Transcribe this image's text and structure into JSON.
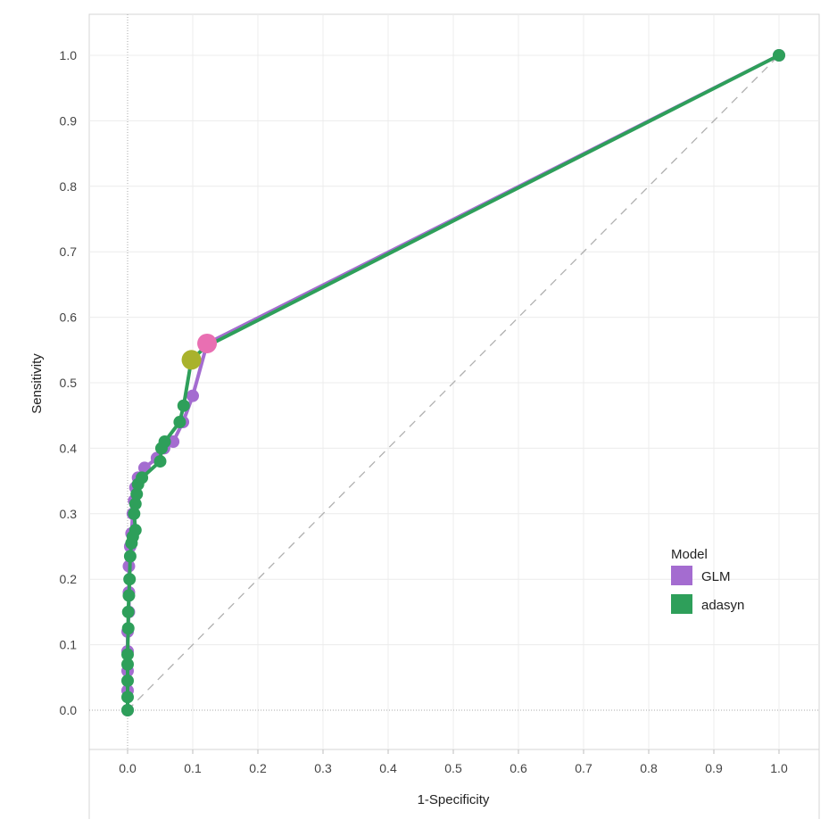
{
  "chart_data": {
    "type": "line",
    "xlabel": "1-Specificity",
    "ylabel": "Sensitivity",
    "xlim": [
      0,
      1
    ],
    "ylim": [
      0,
      1
    ],
    "x_ticks": [
      "0.0",
      "0.1",
      "0.2",
      "0.3",
      "0.4",
      "0.5",
      "0.6",
      "0.7",
      "0.8",
      "0.9",
      "1.0"
    ],
    "y_ticks": [
      "0.0",
      "0.1",
      "0.2",
      "0.3",
      "0.4",
      "0.5",
      "0.6",
      "0.7",
      "0.8",
      "0.9",
      "1.0"
    ],
    "grid": true,
    "reference_line": {
      "from": [
        0,
        0
      ],
      "to": [
        1,
        1
      ],
      "style": "dashed",
      "color": "#b0b0b0"
    },
    "legend": {
      "title": "Model",
      "placement": "right"
    },
    "series": [
      {
        "name": "GLM",
        "color": "#a46cd0",
        "points": [
          [
            0,
            0
          ],
          [
            0,
            0.03
          ],
          [
            0,
            0.06
          ],
          [
            0,
            0.09
          ],
          [
            0,
            0.12
          ],
          [
            0.002,
            0.15
          ],
          [
            0.002,
            0.18
          ],
          [
            0.002,
            0.22
          ],
          [
            0.004,
            0.25
          ],
          [
            0.006,
            0.27
          ],
          [
            0.008,
            0.3
          ],
          [
            0.01,
            0.32
          ],
          [
            0.012,
            0.34
          ],
          [
            0.016,
            0.355
          ],
          [
            0.026,
            0.37
          ],
          [
            0.045,
            0.385
          ],
          [
            0.056,
            0.4
          ],
          [
            0.07,
            0.41
          ],
          [
            0.085,
            0.44
          ],
          [
            0.1,
            0.48
          ],
          [
            0.122,
            0.56
          ],
          [
            1,
            1
          ]
        ],
        "highlight": {
          "x": 0.122,
          "y": 0.56,
          "color": "#e96fb2"
        }
      },
      {
        "name": "adasyn",
        "color": "#2e9f5a",
        "points": [
          [
            0,
            0
          ],
          [
            0,
            0.02
          ],
          [
            0,
            0.045
          ],
          [
            0,
            0.07
          ],
          [
            0,
            0.085
          ],
          [
            0.001,
            0.125
          ],
          [
            0.001,
            0.15
          ],
          [
            0.002,
            0.175
          ],
          [
            0.003,
            0.2
          ],
          [
            0.004,
            0.235
          ],
          [
            0.006,
            0.255
          ],
          [
            0.008,
            0.265
          ],
          [
            0.012,
            0.275
          ],
          [
            0.01,
            0.3
          ],
          [
            0.012,
            0.315
          ],
          [
            0.014,
            0.33
          ],
          [
            0.016,
            0.345
          ],
          [
            0.022,
            0.355
          ],
          [
            0.05,
            0.38
          ],
          [
            0.052,
            0.4
          ],
          [
            0.057,
            0.41
          ],
          [
            0.08,
            0.44
          ],
          [
            0.086,
            0.465
          ],
          [
            0.098,
            0.535
          ],
          [
            0.12,
            0.555
          ],
          [
            1,
            1
          ]
        ],
        "highlight": {
          "x": 0.098,
          "y": 0.535,
          "color": "#a9b22c"
        }
      }
    ]
  }
}
